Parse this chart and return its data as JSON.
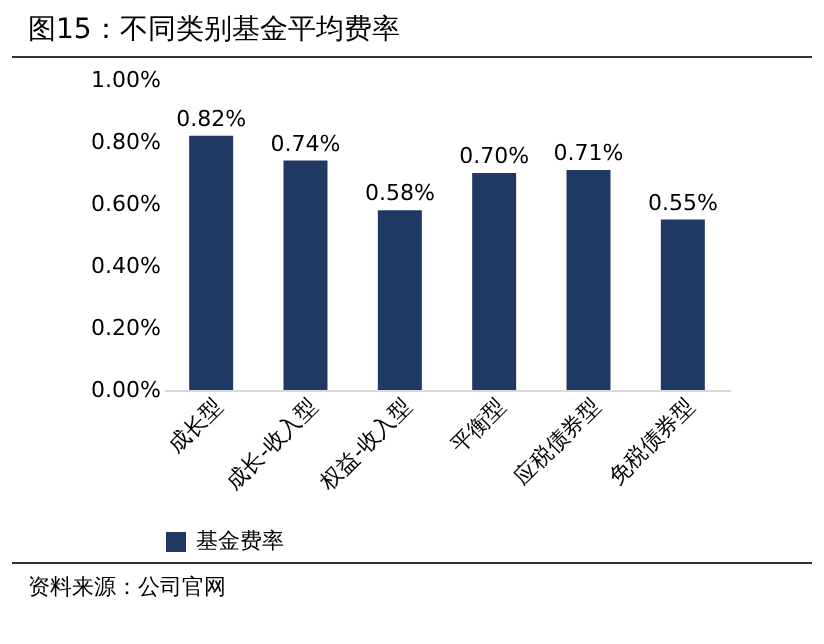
{
  "chart_data": {
    "type": "bar",
    "title": "图15：不同类别基金平均费率",
    "categories": [
      "成长型",
      "成长-收入型",
      "权益-收入型",
      "平衡型",
      "应税债券型",
      "免税债券型"
    ],
    "series": [
      {
        "name": "基金费率",
        "color": "#1f3864",
        "values": [
          0.82,
          0.74,
          0.58,
          0.7,
          0.71,
          0.55
        ],
        "value_labels": [
          "0.82%",
          "0.74%",
          "0.58%",
          "0.70%",
          "0.71%",
          "0.55%"
        ]
      }
    ],
    "ylim": [
      0,
      1
    ],
    "yticks": [
      {
        "value": 0,
        "label": "0.00%"
      },
      {
        "value": 0.2,
        "label": "0.20%"
      },
      {
        "value": 0.4,
        "label": "0.40%"
      },
      {
        "value": 0.6,
        "label": "0.60%"
      },
      {
        "value": 0.8,
        "label": "0.80%"
      },
      {
        "value": 1,
        "label": "1.00%"
      }
    ],
    "legend": "bottom",
    "grid": false,
    "annotations": [
      "资料来源：公司官网"
    ]
  }
}
